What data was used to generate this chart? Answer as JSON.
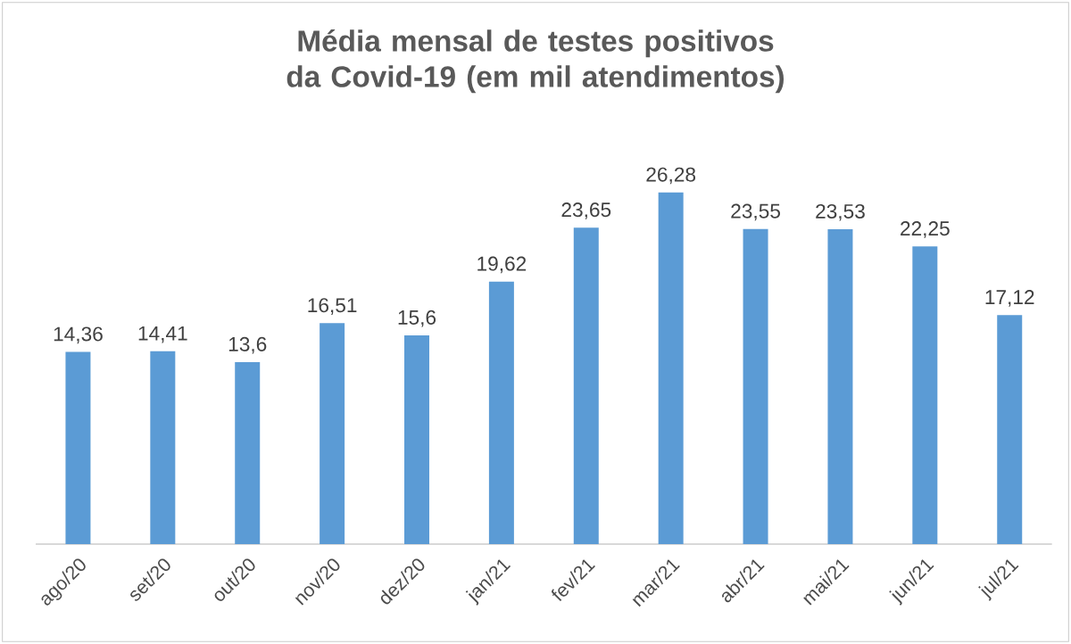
{
  "chart_data": {
    "type": "bar",
    "title": "Média mensal de testes positivos da Covid-19 (em mil atendimentos)",
    "categories": [
      "ago/20",
      "set/20",
      "out/20",
      "nov/20",
      "dez/20",
      "jan/21",
      "fev/21",
      "mar/21",
      "abr/21",
      "mai/21",
      "jun/21",
      "jul/21"
    ],
    "values": [
      14.36,
      14.41,
      13.6,
      16.51,
      15.6,
      19.62,
      23.65,
      26.28,
      23.55,
      23.53,
      22.25,
      17.12
    ],
    "value_labels": [
      "14,36",
      "14,41",
      "13,6",
      "16,51",
      "15,6",
      "19,62",
      "23,65",
      "26,28",
      "23,55",
      "23,53",
      "22,25",
      "17,12"
    ],
    "color": "#5b9bd5"
  }
}
